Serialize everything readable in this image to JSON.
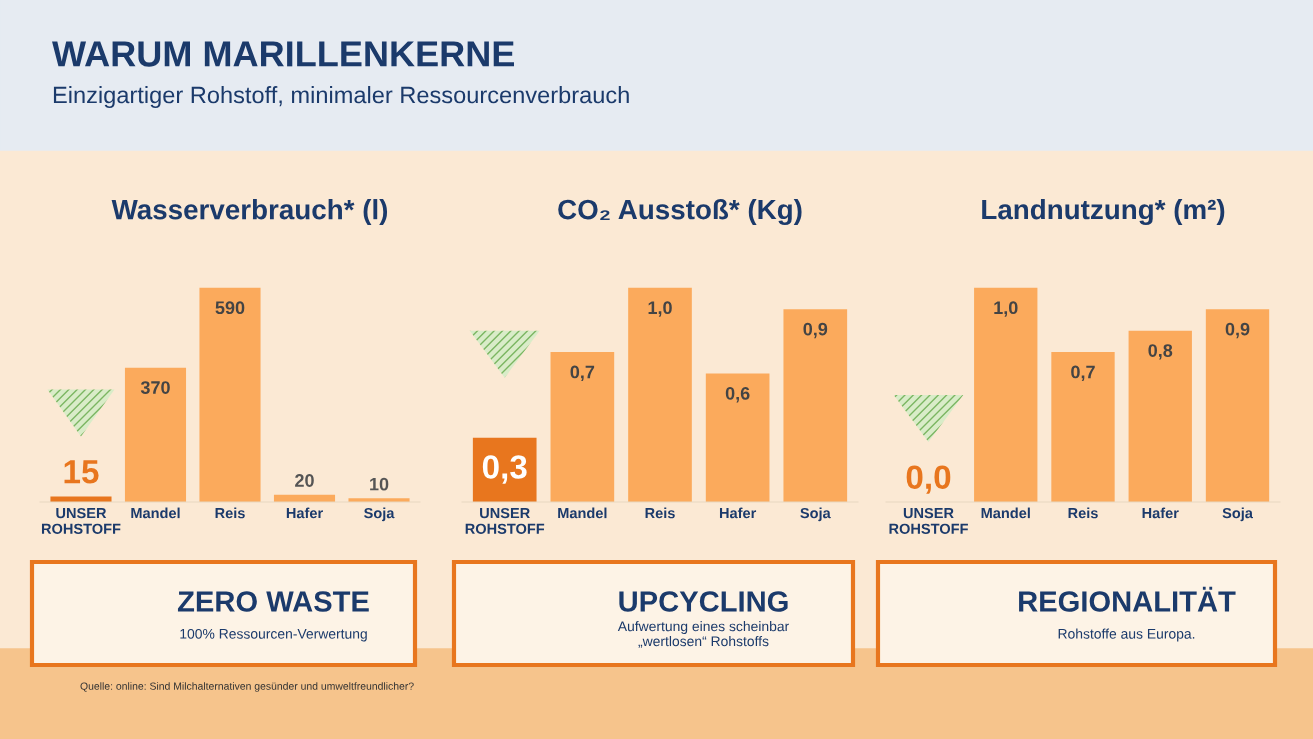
{
  "chart_data": [
    {
      "type": "other",
      "title": "WARUM MARILLENKERNE",
      "subtitle": "Einzigartiger Rohstoff, minimaler Ressourcenverbrauch",
      "annotations": [
        "Quelle: online: Sind Milchalternativen gesünder und umweltfreundlicher?"
      ]
    },
    {
      "type": "bar",
      "title": "Wasserverbrauch* (l)",
      "categories": [
        "UNSER\nROHSTOFF",
        "Mandel",
        "Reis",
        "Hafer",
        "Soja"
      ],
      "values": [
        15,
        370,
        590,
        20,
        10
      ],
      "colors": [
        "#e8761e",
        "#fbaa5c",
        "#fbaa5c",
        "#fbaa5c",
        "#fbaa5c"
      ],
      "value_labels": [
        "15",
        "370",
        "590",
        "20",
        "10"
      ],
      "annotations": [
        "ZERO WASTE",
        "100% Ressourcen-Verwertung"
      ]
    },
    {
      "type": "bar",
      "title": "CO₂ Ausstoß* (Kg)",
      "categories": [
        "UNSER\nROHSTOFF",
        "Mandel",
        "Reis",
        "Hafer",
        "Soja"
      ],
      "values": [
        0.3,
        0.7,
        1.0,
        0.6,
        0.9
      ],
      "colors": [
        "#e8761e",
        "#fbaa5c",
        "#fbaa5c",
        "#fbaa5c",
        "#fbaa5c"
      ],
      "value_labels": [
        "0,3",
        "0,7",
        "1,0",
        "0,6",
        "0,9"
      ],
      "annotations": [
        "UPCYCLING",
        "Aufwertung eines scheinbar\n„wertlosen“ Rohstoffs"
      ]
    },
    {
      "type": "bar",
      "title": "Landnutzung* (m²)",
      "categories": [
        "UNSER\nROHSTOFF",
        "Mandel",
        "Reis",
        "Hafer",
        "Soja"
      ],
      "values": [
        0.0,
        1.0,
        0.7,
        0.8,
        0.9
      ],
      "colors": [
        "#e8761e",
        "#fbaa5c",
        "#fbaa5c",
        "#fbaa5c",
        "#fbaa5c"
      ],
      "value_labels": [
        "0,0",
        "1,0",
        "0,7",
        "0,8",
        "0,9"
      ],
      "annotations": [
        "REGIONALITÄT",
        "Rohstoffe aus Europa."
      ]
    }
  ]
}
